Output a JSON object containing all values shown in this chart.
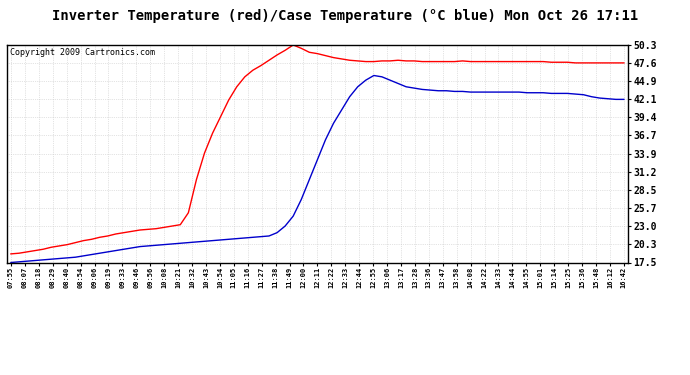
{
  "title": "Inverter Temperature (red)/Case Temperature (°C blue) Mon Oct 26 17:11",
  "copyright": "Copyright 2009 Cartronics.com",
  "y_ticks": [
    17.5,
    20.3,
    23.0,
    25.7,
    28.5,
    31.2,
    33.9,
    36.7,
    39.4,
    42.1,
    44.9,
    47.6,
    50.3
  ],
  "x_labels": [
    "07:55",
    "08:07",
    "08:18",
    "08:29",
    "08:40",
    "08:54",
    "09:06",
    "09:19",
    "09:33",
    "09:46",
    "09:56",
    "10:08",
    "10:21",
    "10:32",
    "10:43",
    "10:54",
    "11:05",
    "11:16",
    "11:27",
    "11:38",
    "11:49",
    "12:00",
    "12:11",
    "12:22",
    "12:33",
    "12:44",
    "12:55",
    "13:06",
    "13:17",
    "13:28",
    "13:36",
    "13:47",
    "13:58",
    "14:08",
    "14:22",
    "14:33",
    "14:44",
    "14:55",
    "15:01",
    "15:14",
    "15:25",
    "15:36",
    "15:48",
    "16:12",
    "16:42"
  ],
  "red_values": [
    18.8,
    18.9,
    19.1,
    19.3,
    19.5,
    19.8,
    20.0,
    20.2,
    20.5,
    20.8,
    21.0,
    21.3,
    21.5,
    21.8,
    22.0,
    22.2,
    22.4,
    22.5,
    22.6,
    22.8,
    23.0,
    23.2,
    25.0,
    30.0,
    34.0,
    37.0,
    39.5,
    42.0,
    44.0,
    45.5,
    46.5,
    47.2,
    48.0,
    48.8,
    49.5,
    50.3,
    49.8,
    49.2,
    49.0,
    48.7,
    48.4,
    48.2,
    48.0,
    47.9,
    47.8,
    47.8,
    47.9,
    47.9,
    48.0,
    47.9,
    47.9,
    47.8,
    47.8,
    47.8,
    47.8,
    47.8,
    47.9,
    47.8,
    47.8,
    47.8,
    47.8,
    47.8,
    47.8,
    47.8,
    47.8,
    47.8,
    47.8,
    47.7,
    47.7,
    47.7,
    47.6,
    47.6,
    47.6,
    47.6,
    47.6,
    47.6,
    47.6
  ],
  "blue_values": [
    17.5,
    17.6,
    17.7,
    17.8,
    17.9,
    18.0,
    18.1,
    18.2,
    18.3,
    18.5,
    18.7,
    18.9,
    19.1,
    19.3,
    19.5,
    19.7,
    19.9,
    20.0,
    20.1,
    20.2,
    20.3,
    20.4,
    20.5,
    20.6,
    20.7,
    20.8,
    20.9,
    21.0,
    21.1,
    21.2,
    21.3,
    21.4,
    21.5,
    22.0,
    23.0,
    24.5,
    27.0,
    30.0,
    33.0,
    36.0,
    38.5,
    40.5,
    42.5,
    44.0,
    45.0,
    45.7,
    45.5,
    45.0,
    44.5,
    44.0,
    43.8,
    43.6,
    43.5,
    43.4,
    43.4,
    43.3,
    43.3,
    43.2,
    43.2,
    43.2,
    43.2,
    43.2,
    43.2,
    43.2,
    43.1,
    43.1,
    43.1,
    43.0,
    43.0,
    43.0,
    42.9,
    42.8,
    42.5,
    42.3,
    42.2,
    42.1,
    42.1
  ],
  "ylim": [
    17.5,
    50.3
  ],
  "background_color": "#ffffff",
  "grid_color": "#c8c8c8",
  "red_color": "#ff0000",
  "blue_color": "#0000cc",
  "title_fontsize": 10,
  "copyright_fontsize": 6,
  "line_width": 1.0
}
